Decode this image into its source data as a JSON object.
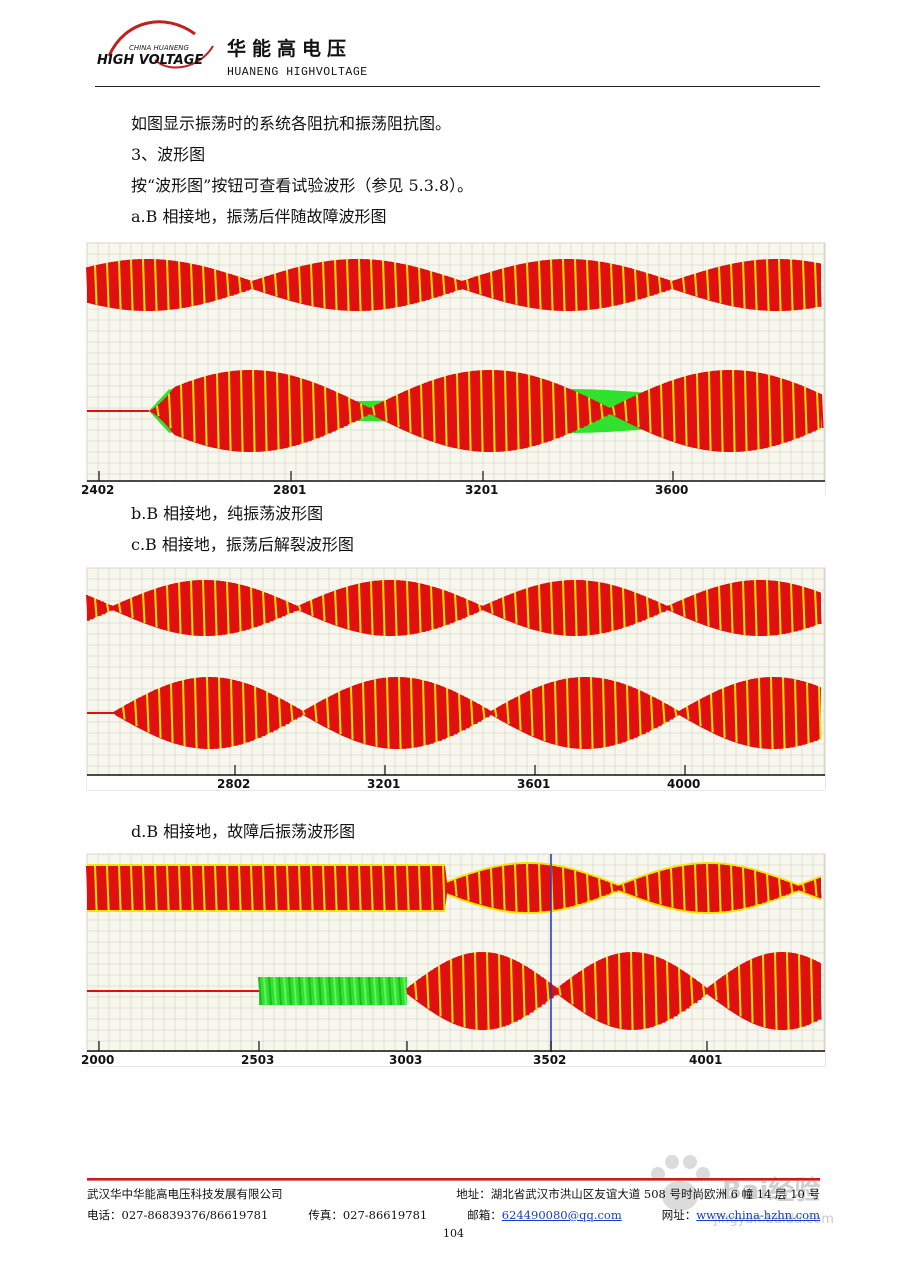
{
  "header": {
    "logo_text_small": "CHINA HUANENG",
    "logo_text_main": "HIGH VOLTAGE",
    "brand_cn": "华能高电压",
    "brand_en": "HUANENG HIGHVOLTAGE"
  },
  "body": {
    "intro": "如图显示振荡时的系统各阻抗和振荡阻抗图。",
    "section_title": "3、波形图",
    "instruction": "按“波形图”按钮可查看试验波形（参见 5.3.8）。"
  },
  "figures": [
    {
      "caption": "a.B 相接地，振荡后伴随故障波形图",
      "ticks": [
        "2402",
        "2801",
        "3201",
        "3600"
      ]
    },
    {
      "caption": "b.B 相接地，纯振荡波形图"
    },
    {
      "caption": "c.B 相接地，振荡后解裂波形图",
      "ticks": [
        "2802",
        "3201",
        "3601",
        "4000"
      ]
    },
    {
      "caption": "d.B 相接地，故障后振荡波形图",
      "ticks": [
        "2000",
        "2503",
        "3003",
        "3502",
        "4001"
      ]
    }
  ],
  "colors": {
    "red": "#e01010",
    "yellow": "#f2e600",
    "green": "#2ee22e",
    "grid": "#d9d9cf",
    "bg": "#f7f7ee",
    "cursor": "#1f2fd0",
    "accent": "#c0201f"
  },
  "footer": {
    "company": "武汉华中华能高电压科技发展有限公司",
    "address": "地址：湖北省武汉市洪山区友谊大道 508 号时尚欧洲 6 幢 14 层 10 号",
    "phone": "电话：027-86839376/86619781",
    "fax": "传真：027-86619781",
    "email_label": "邮箱：",
    "email": "624490080@qq.com",
    "website_label": "网址：",
    "website": "www.china-hzhn.com",
    "page_number": "104"
  },
  "watermark": {
    "site": "jingyan.baidu.com",
    "brand": "Bai经验"
  }
}
